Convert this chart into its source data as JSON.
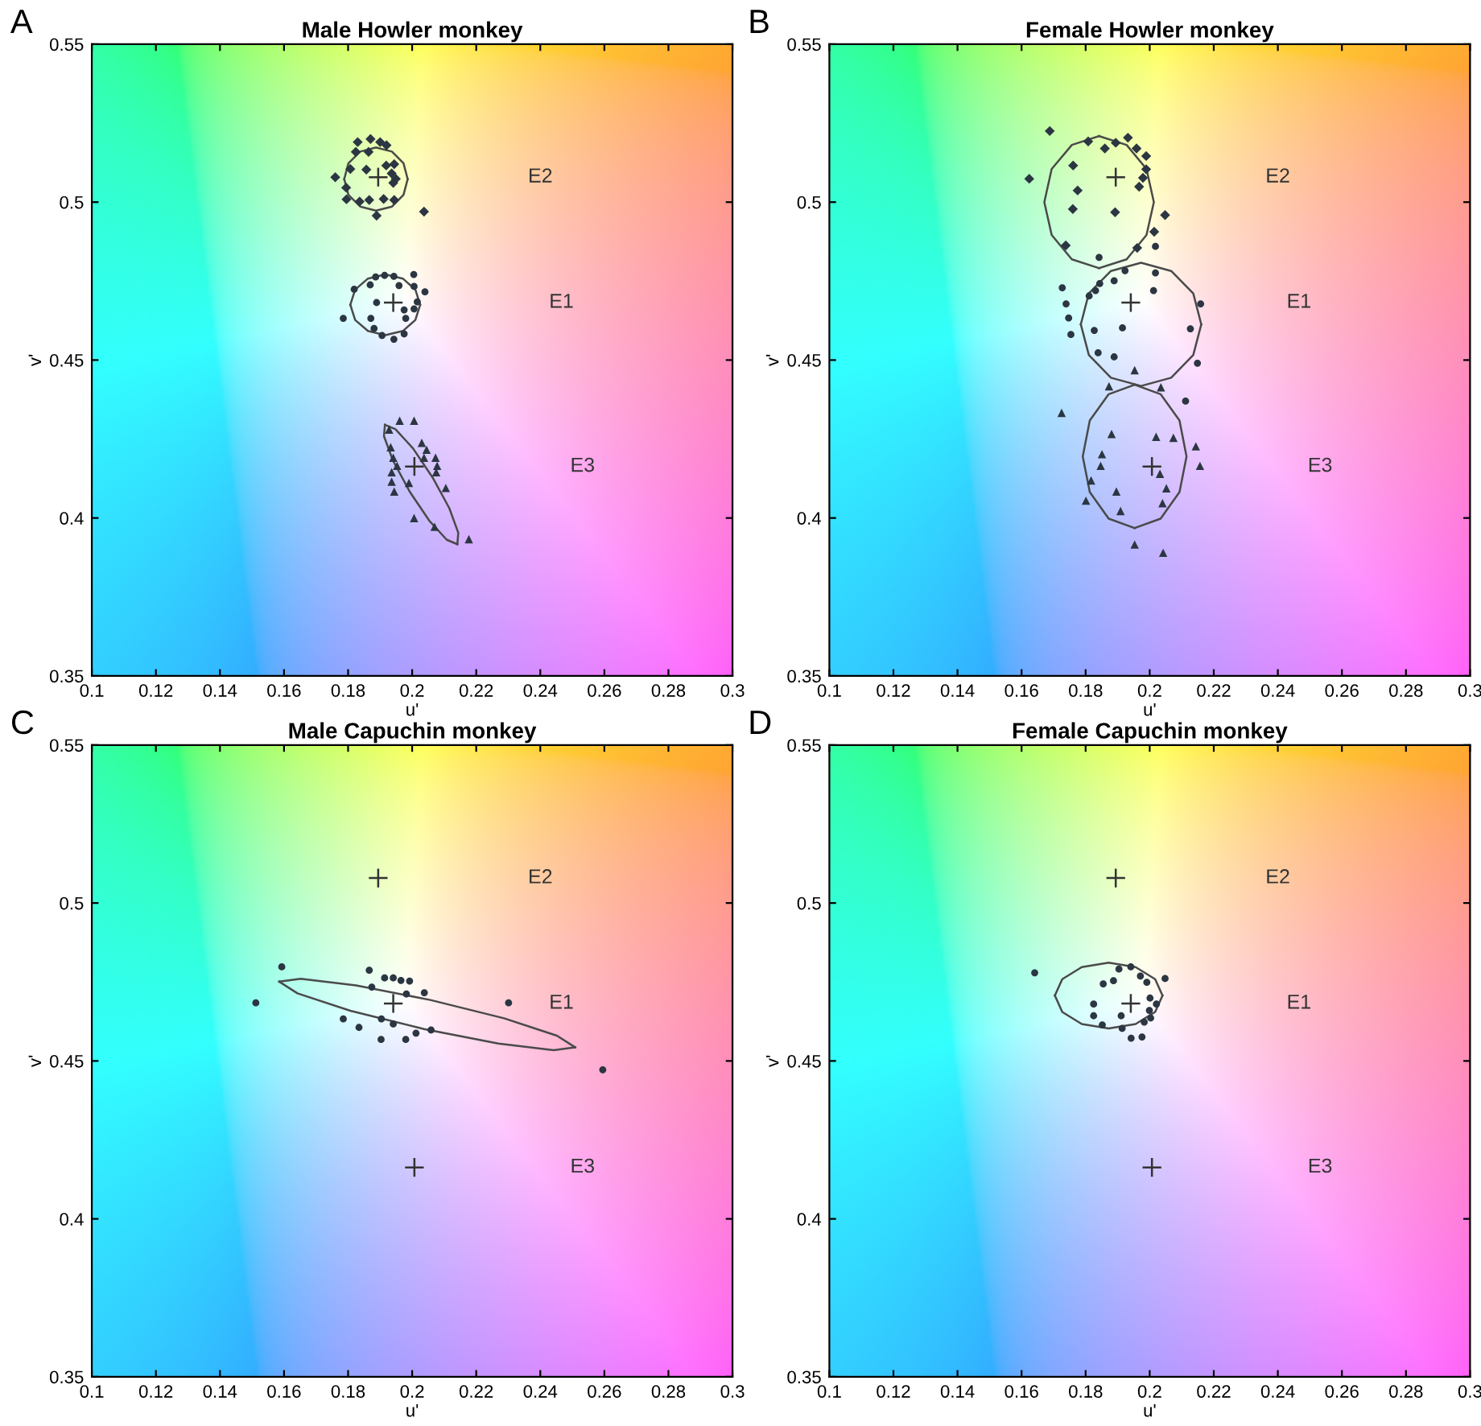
{
  "chart_data": [
    {
      "type": "scatter",
      "title": "Male Howler monkey",
      "xlabel": "u'",
      "ylabel": "v'",
      "xlim": [
        0.1,
        0.3
      ],
      "ylim": [
        0.35,
        0.55
      ],
      "xticks": [
        0.1,
        0.12,
        0.14,
        0.16,
        0.18,
        0.2,
        0.22,
        0.24,
        0.26,
        0.28,
        0.3
      ],
      "yticks": [
        0.35,
        0.4,
        0.45,
        0.5,
        0.55
      ],
      "annotations": [
        "A",
        "E2",
        "E1",
        "E3"
      ],
      "series": [
        {
          "marker": "diamond",
          "color": "#2b3642",
          "x": [
            0.1824,
            0.1864,
            0.1807,
            0.1857,
            0.1919,
            0.1944,
            0.1936,
            0.1949,
            0.1941,
            0.176,
            0.1794,
            0.1795,
            0.1836,
            0.1866,
            0.1911,
            0.1944,
            0.1889,
            0.2037,
            0.183,
            0.187,
            0.19,
            0.192
          ],
          "values": [
            0.5159,
            0.5159,
            0.5105,
            0.5103,
            0.5116,
            0.512,
            0.5091,
            0.5074,
            0.5061,
            0.5079,
            0.5046,
            0.5009,
            0.5002,
            0.5007,
            0.501,
            0.5007,
            0.4957,
            0.497,
            0.519,
            0.52,
            0.519,
            0.518
          ]
        },
        {
          "marker": "circle",
          "color": "#2b3642",
          "x": [
            0.1886,
            0.1914,
            0.1943,
            0.2005,
            0.1819,
            0.1869,
            0.1959,
            0.2006,
            0.204,
            0.1889,
            0.2016,
            0.2006,
            0.1975,
            0.1785,
            0.1871,
            0.198,
            0.1881,
            0.1906,
            0.1943,
            0.1975
          ],
          "values": [
            0.4763,
            0.4768,
            0.4765,
            0.4771,
            0.4724,
            0.4738,
            0.4736,
            0.4733,
            0.4716,
            0.4682,
            0.4684,
            0.4662,
            0.4659,
            0.4632,
            0.4632,
            0.4632,
            0.46,
            0.4578,
            0.4566,
            0.4583
          ]
        },
        {
          "marker": "triangle",
          "color": "#2b3642",
          "x": [
            0.1961,
            0.2006,
            0.1928,
            0.1933,
            0.203,
            0.2045,
            0.1941,
            0.1953,
            0.2037,
            0.2073,
            0.2078,
            0.2075,
            0.1936,
            0.1936,
            0.199,
            0.1944,
            0.2105,
            0.2006,
            0.207,
            0.2177
          ],
          "values": [
            0.4308,
            0.4308,
            0.428,
            0.4224,
            0.4238,
            0.4216,
            0.4191,
            0.4165,
            0.4191,
            0.4191,
            0.4165,
            0.4145,
            0.4145,
            0.4115,
            0.4111,
            0.4084,
            0.4095,
            0.4,
            0.3972,
            0.3933
          ]
        },
        {
          "type": "line",
          "line_style": "solid",
          "color": "#4a4a4a",
          "x": [
            0.1788,
            0.1801,
            0.1838,
            0.1887,
            0.1937,
            0.1973,
            0.1986
          ],
          "values": [
            0.5073,
            0.5123,
            0.516,
            0.5173,
            0.516,
            0.5123,
            0.5073
          ]
        },
        {
          "type": "line",
          "line_style": "solid",
          "color": "#4a4a4a",
          "x": [
            0.1788,
            0.1801,
            0.1838,
            0.1887,
            0.1937,
            0.1973,
            0.1986
          ],
          "values": [
            0.5073,
            0.5023,
            0.4986,
            0.4973,
            0.4986,
            0.5023,
            0.5073
          ]
        },
        {
          "type": "line",
          "line_style": "solid",
          "color": "#4a4a4a",
          "x": [
            0.1807,
            0.1822,
            0.1862,
            0.1916,
            0.1971,
            0.201,
            0.2025
          ],
          "values": [
            0.4675,
            0.4723,
            0.4758,
            0.4771,
            0.4758,
            0.4723,
            0.4675
          ]
        },
        {
          "type": "line",
          "line_style": "solid",
          "color": "#4a4a4a",
          "x": [
            0.1807,
            0.1822,
            0.1862,
            0.1916,
            0.1971,
            0.201,
            0.2025
          ],
          "values": [
            0.4675,
            0.4627,
            0.4592,
            0.4579,
            0.4592,
            0.4627,
            0.4675
          ]
        },
        {
          "type": "line",
          "line_style": "solid",
          "color": "#4a4a4a",
          "x": [
            0.2141,
            0.2144,
            0.2116,
            0.2064,
            0.2003,
            0.1948,
            0.1915
          ],
          "values": [
            0.3917,
            0.3953,
            0.4031,
            0.4128,
            0.422,
            0.4281,
            0.4295
          ]
        },
        {
          "type": "line",
          "line_style": "solid",
          "color": "#4a4a4a",
          "x": [
            0.1915,
            0.1912,
            0.194,
            0.1992,
            0.2053,
            0.2108,
            0.2141
          ],
          "values": [
            0.4295,
            0.4259,
            0.4182,
            0.4084,
            0.3992,
            0.3931,
            0.3917
          ]
        },
        {
          "marker": "cross",
          "color": "#333333",
          "x": [
            0.1894,
            0.1941,
            0.2007
          ],
          "values": [
            0.5079,
            0.4682,
            0.4163
          ]
        }
      ]
    },
    {
      "type": "scatter",
      "title": "Female Howler monkey",
      "xlabel": "u'",
      "ylabel": "v'",
      "xlim": [
        0.1,
        0.3
      ],
      "ylim": [
        0.35,
        0.55
      ],
      "xticks": [
        0.1,
        0.12,
        0.14,
        0.16,
        0.18,
        0.2,
        0.22,
        0.24,
        0.26,
        0.28,
        0.3
      ],
      "yticks": [
        0.35,
        0.4,
        0.45,
        0.5,
        0.55
      ],
      "annotations": [
        "B",
        "E2",
        "E1",
        "E3"
      ],
      "series": [
        {
          "marker": "diamond",
          "color": "#2b3642",
          "x": [
            0.1688,
            0.1808,
            0.186,
            0.1894,
            0.1932,
            0.1959,
            0.1989,
            0.1989,
            0.1979,
            0.1967,
            0.1624,
            0.1761,
            0.1775,
            0.176,
            0.1892,
            0.2048,
            0.2014,
            0.1961,
            0.1738
          ],
          "values": [
            0.5225,
            0.5192,
            0.517,
            0.5188,
            0.5204,
            0.517,
            0.5146,
            0.5104,
            0.5077,
            0.5049,
            0.5074,
            0.5116,
            0.5037,
            0.4978,
            0.4968,
            0.4959,
            0.4906,
            0.4855,
            0.4863
          ]
        },
        {
          "marker": "circle",
          "color": "#2b3642",
          "x": [
            0.1842,
            0.2018,
            0.1923,
            0.2018,
            0.1889,
            0.1844,
            0.1831,
            0.1811,
            0.1727,
            0.2012,
            0.1739,
            0.2159,
            0.1747,
            0.1754,
            0.1827,
            0.1915,
            0.2127,
            0.1839,
            0.1889,
            0.2149,
            0.2112
          ],
          "values": [
            0.4825,
            0.486,
            0.4783,
            0.4776,
            0.4751,
            0.4742,
            0.472,
            0.4703,
            0.4729,
            0.472,
            0.4678,
            0.4678,
            0.4633,
            0.4581,
            0.4594,
            0.4602,
            0.4599,
            0.4523,
            0.451,
            0.449,
            0.437
          ]
        },
        {
          "marker": "triangle",
          "color": "#2b3642",
          "x": [
            0.1953,
            0.1873,
            0.2035,
            0.1725,
            0.1881,
            0.202,
            0.2074,
            0.2144,
            0.1851,
            0.1847,
            0.2157,
            0.2032,
            0.1817,
            0.2052,
            0.1896,
            0.1801,
            0.204,
            0.1909,
            0.1953,
            0.2042
          ],
          "values": [
            0.4468,
            0.4417,
            0.4414,
            0.4333,
            0.4266,
            0.4257,
            0.4254,
            0.4227,
            0.4202,
            0.4165,
            0.4165,
            0.414,
            0.4119,
            0.4094,
            0.4084,
            0.4055,
            0.4047,
            0.4022,
            0.3916,
            0.389
          ]
        },
        {
          "type": "line",
          "line_style": "solid",
          "color": "#4a4a4a",
          "x": [
            0.1842,
            0.1757,
            0.1694,
            0.1671,
            0.1694,
            0.1757,
            0.1842
          ],
          "values": [
            0.5209,
            0.5181,
            0.5105,
            0.5,
            0.4896,
            0.4819,
            0.4791
          ]
        },
        {
          "type": "line",
          "line_style": "solid",
          "color": "#4a4a4a",
          "x": [
            0.1842,
            0.1928,
            0.199,
            0.2013,
            0.199,
            0.1928,
            0.1842
          ],
          "values": [
            0.4791,
            0.4819,
            0.4896,
            0.5,
            0.5105,
            0.5181,
            0.5209
          ]
        },
        {
          "type": "line",
          "line_style": "solid",
          "color": "#4a4a4a",
          "x": [
            0.1785,
            0.181,
            0.1879,
            0.1973,
            0.2067,
            0.2136,
            0.2161
          ],
          "values": [
            0.4613,
            0.4711,
            0.4782,
            0.4808,
            0.4782,
            0.4711,
            0.4613
          ]
        },
        {
          "type": "line",
          "line_style": "solid",
          "color": "#4a4a4a",
          "x": [
            0.1785,
            0.181,
            0.1879,
            0.1973,
            0.2067,
            0.2136,
            0.2161
          ],
          "values": [
            0.4613,
            0.4516,
            0.4444,
            0.4418,
            0.4444,
            0.4516,
            0.4613
          ]
        },
        {
          "type": "line",
          "line_style": "solid",
          "color": "#4a4a4a",
          "x": [
            0.1953,
            0.1872,
            0.1813,
            0.1791,
            0.1813,
            0.1872,
            0.1953
          ],
          "values": [
            0.4422,
            0.4392,
            0.4309,
            0.4195,
            0.4082,
            0.3998,
            0.3968
          ]
        },
        {
          "type": "line",
          "line_style": "solid",
          "color": "#4a4a4a",
          "x": [
            0.1953,
            0.2034,
            0.2093,
            0.2115,
            0.2093,
            0.2034,
            0.1953
          ],
          "values": [
            0.3968,
            0.3998,
            0.4082,
            0.4195,
            0.4309,
            0.4392,
            0.4422
          ]
        },
        {
          "marker": "cross",
          "color": "#333333",
          "x": [
            0.1894,
            0.1941,
            0.2007
          ],
          "values": [
            0.5079,
            0.4682,
            0.4163
          ]
        }
      ]
    },
    {
      "type": "scatter",
      "title": "Male Capuchin monkey",
      "xlabel": "u'",
      "ylabel": "v'",
      "xlim": [
        0.1,
        0.3
      ],
      "ylim": [
        0.35,
        0.55
      ],
      "xticks": [
        0.1,
        0.12,
        0.14,
        0.16,
        0.18,
        0.2,
        0.22,
        0.24,
        0.26,
        0.28,
        0.3
      ],
      "yticks": [
        0.35,
        0.4,
        0.45,
        0.5,
        0.55
      ],
      "annotations": [
        "C",
        "E2",
        "E1",
        "E3"
      ],
      "series": [
        {
          "marker": "circle",
          "color": "#2b3642",
          "x": [
            0.1593,
            0.1512,
            0.1866,
            0.1914,
            0.1941,
            0.1965,
            0.1992,
            0.1874,
            0.1982,
            0.2038,
            0.2301,
            0.1785,
            0.1834,
            0.1904,
            0.1941,
            0.2012,
            0.2059,
            0.1903,
            0.198,
            0.2595
          ],
          "values": [
            0.4798,
            0.4684,
            0.4787,
            0.4763,
            0.4763,
            0.4755,
            0.4753,
            0.4734,
            0.4712,
            0.4716,
            0.4684,
            0.4633,
            0.4606,
            0.4633,
            0.4617,
            0.4588,
            0.4598,
            0.4568,
            0.4568,
            0.4472
          ]
        },
        {
          "type": "line",
          "line_style": "solid",
          "color": "#4a4a4a",
          "x": [
            0.1585,
            0.1652,
            0.1825,
            0.2057,
            0.2287,
            0.2452,
            0.2509
          ],
          "values": [
            0.4751,
            0.476,
            0.4739,
            0.4693,
            0.4635,
            0.458,
            0.4543
          ]
        },
        {
          "type": "line",
          "line_style": "solid",
          "color": "#4a4a4a",
          "x": [
            0.1585,
            0.1642,
            0.1807,
            0.2037,
            0.2269,
            0.2442,
            0.2509
          ],
          "values": [
            0.4751,
            0.4714,
            0.4659,
            0.4601,
            0.4555,
            0.4534,
            0.4543
          ]
        },
        {
          "marker": "cross",
          "color": "#333333",
          "x": [
            0.1894,
            0.1941,
            0.2007
          ],
          "values": [
            0.5079,
            0.4682,
            0.4163
          ]
        }
      ]
    },
    {
      "type": "scatter",
      "title": "Female Capuchin monkey",
      "xlabel": "u'",
      "ylabel": "v'",
      "xlim": [
        0.1,
        0.3
      ],
      "ylim": [
        0.35,
        0.55
      ],
      "xticks": [
        0.1,
        0.12,
        0.14,
        0.16,
        0.18,
        0.2,
        0.22,
        0.24,
        0.26,
        0.28,
        0.3
      ],
      "yticks": [
        0.35,
        0.4,
        0.45,
        0.5,
        0.55
      ],
      "annotations": [
        "D",
        "E2",
        "E1",
        "E3"
      ],
      "series": [
        {
          "marker": "circle",
          "color": "#2b3642",
          "x": [
            0.1641,
            0.1904,
            0.1941,
            0.1971,
            0.1991,
            0.2048,
            0.1855,
            0.1887,
            0.2001,
            0.2021,
            0.1825,
            0.1999,
            0.1825,
            0.1911,
            0.2003,
            0.1983,
            0.1852,
            0.1914,
            0.1942,
            0.1976
          ],
          "values": [
            0.4779,
            0.4791,
            0.4798,
            0.4769,
            0.4749,
            0.4761,
            0.4744,
            0.4754,
            0.4699,
            0.468,
            0.468,
            0.466,
            0.4643,
            0.4643,
            0.4636,
            0.4623,
            0.4614,
            0.4603,
            0.4572,
            0.4576
          ]
        },
        {
          "type": "line",
          "line_style": "solid",
          "color": "#4a4a4a",
          "x": [
            0.1704,
            0.1727,
            0.1788,
            0.1872,
            0.1956,
            0.2017,
            0.204
          ],
          "values": [
            0.4707,
            0.4759,
            0.4797,
            0.4811,
            0.4797,
            0.4759,
            0.4707
          ]
        },
        {
          "type": "line",
          "line_style": "solid",
          "color": "#4a4a4a",
          "x": [
            0.1704,
            0.1727,
            0.1788,
            0.1872,
            0.1956,
            0.2017,
            0.204
          ],
          "values": [
            0.4707,
            0.4655,
            0.4617,
            0.4603,
            0.4617,
            0.4655,
            0.4707
          ]
        },
        {
          "marker": "cross",
          "color": "#333333",
          "x": [
            0.1894,
            0.1941,
            0.2007
          ],
          "values": [
            0.5079,
            0.4682,
            0.4163
          ]
        }
      ]
    }
  ]
}
